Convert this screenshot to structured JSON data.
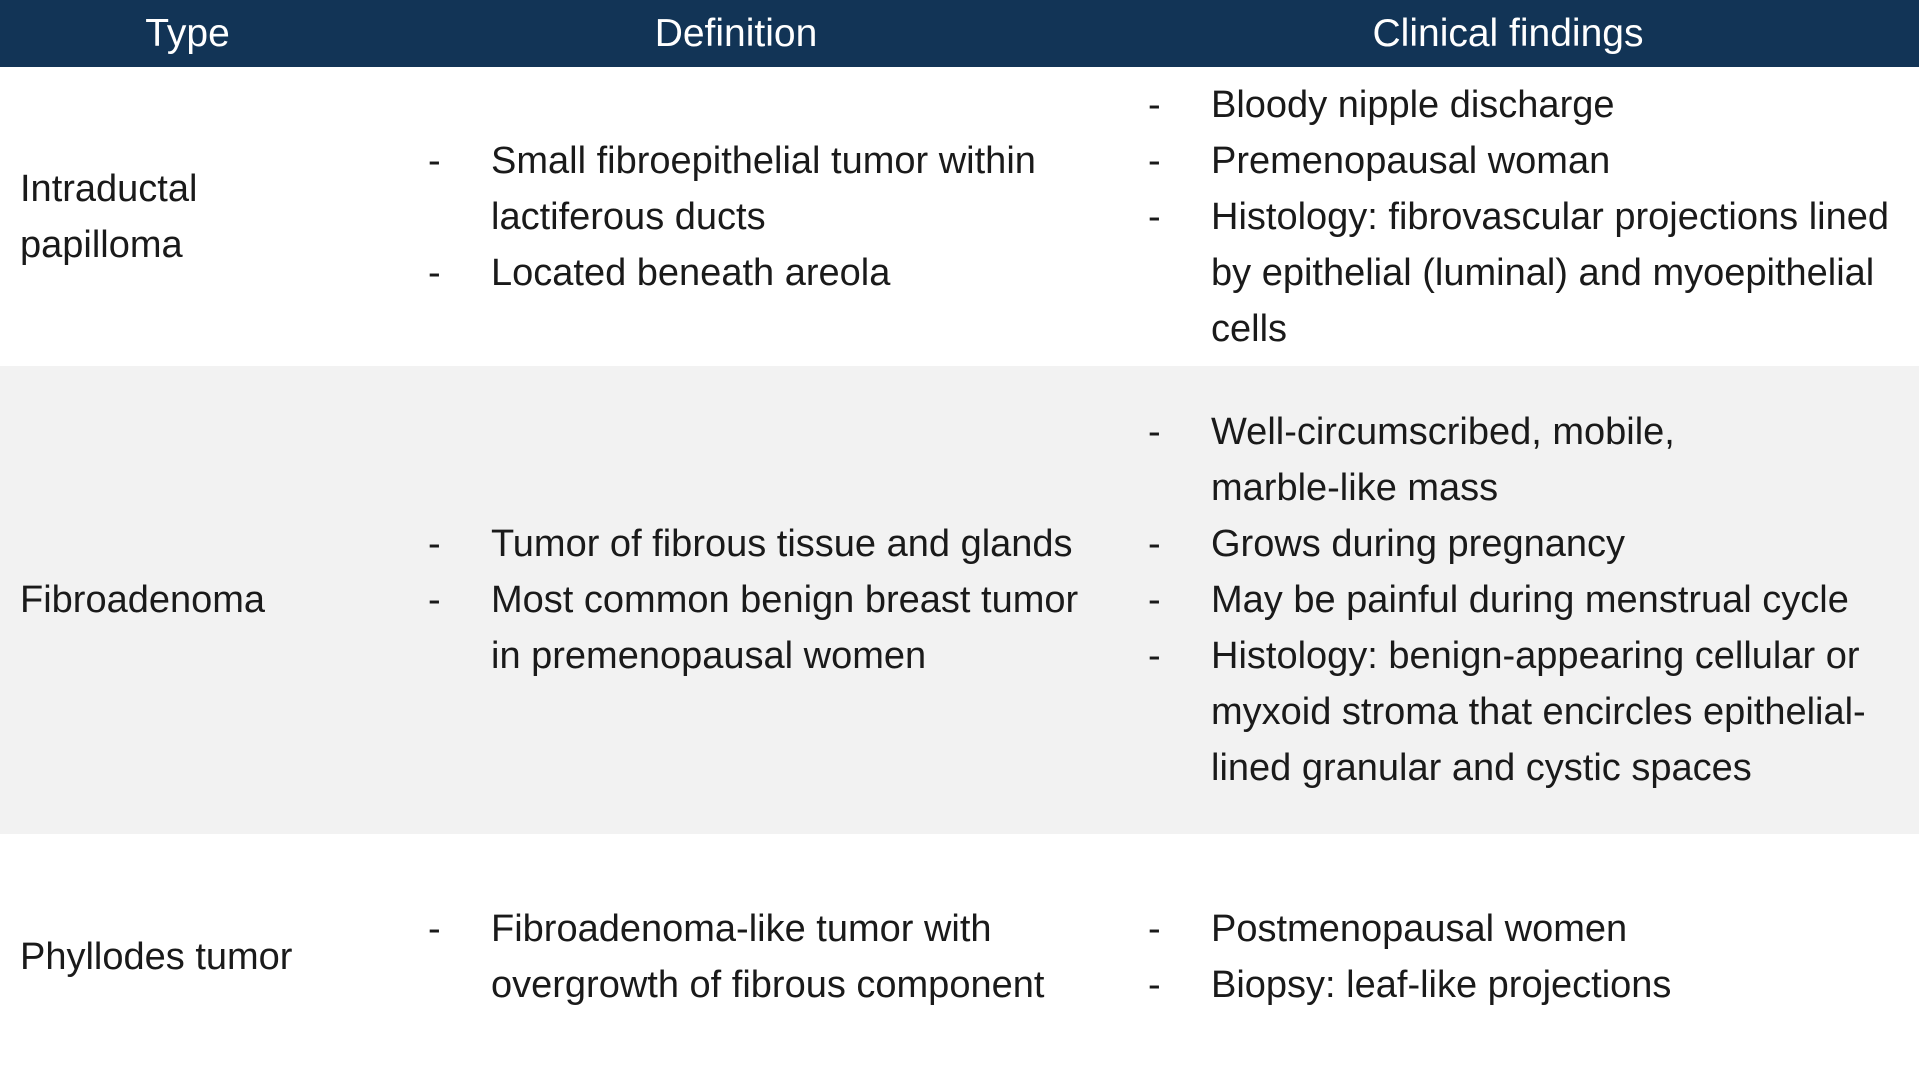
{
  "header": {
    "type": "Type",
    "definition": "Definition",
    "clinical": "Clinical findings"
  },
  "rows": [
    {
      "type": "Intraductal papilloma",
      "definition": [
        "Small fibroepithelial tumor within lactiferous ducts",
        "Located beneath areola"
      ],
      "clinical": [
        "Bloody nipple discharge",
        "Premenopausal woman",
        "Histology: fibrovascular projections lined by epithelial (luminal) and myoepithelial cells"
      ]
    },
    {
      "type": "Fibroadenoma",
      "definition": [
        "Tumor of fibrous tissue and glands",
        "Most common benign breast tumor in premenopausal women"
      ],
      "clinical": [
        "Well-circumscribed, mobile, marble-like mass",
        "Grows during pregnancy",
        "May be painful during menstrual cycle",
        "Histology: benign-appearing cellular or myxoid stroma that encircles epithelial-lined granular and cystic spaces"
      ]
    },
    {
      "type": "Phyllodes tumor",
      "definition": [
        "Fibroadenoma-like tumor with overgrowth of fibrous component"
      ],
      "clinical": [
        "Postmenopausal women",
        "Biopsy: leaf-like projections"
      ]
    }
  ],
  "bullet_char": "-",
  "colors": {
    "header_bg": "#123456",
    "header_text": "#ffffff",
    "alt_row_bg": "#f2f2f2"
  }
}
